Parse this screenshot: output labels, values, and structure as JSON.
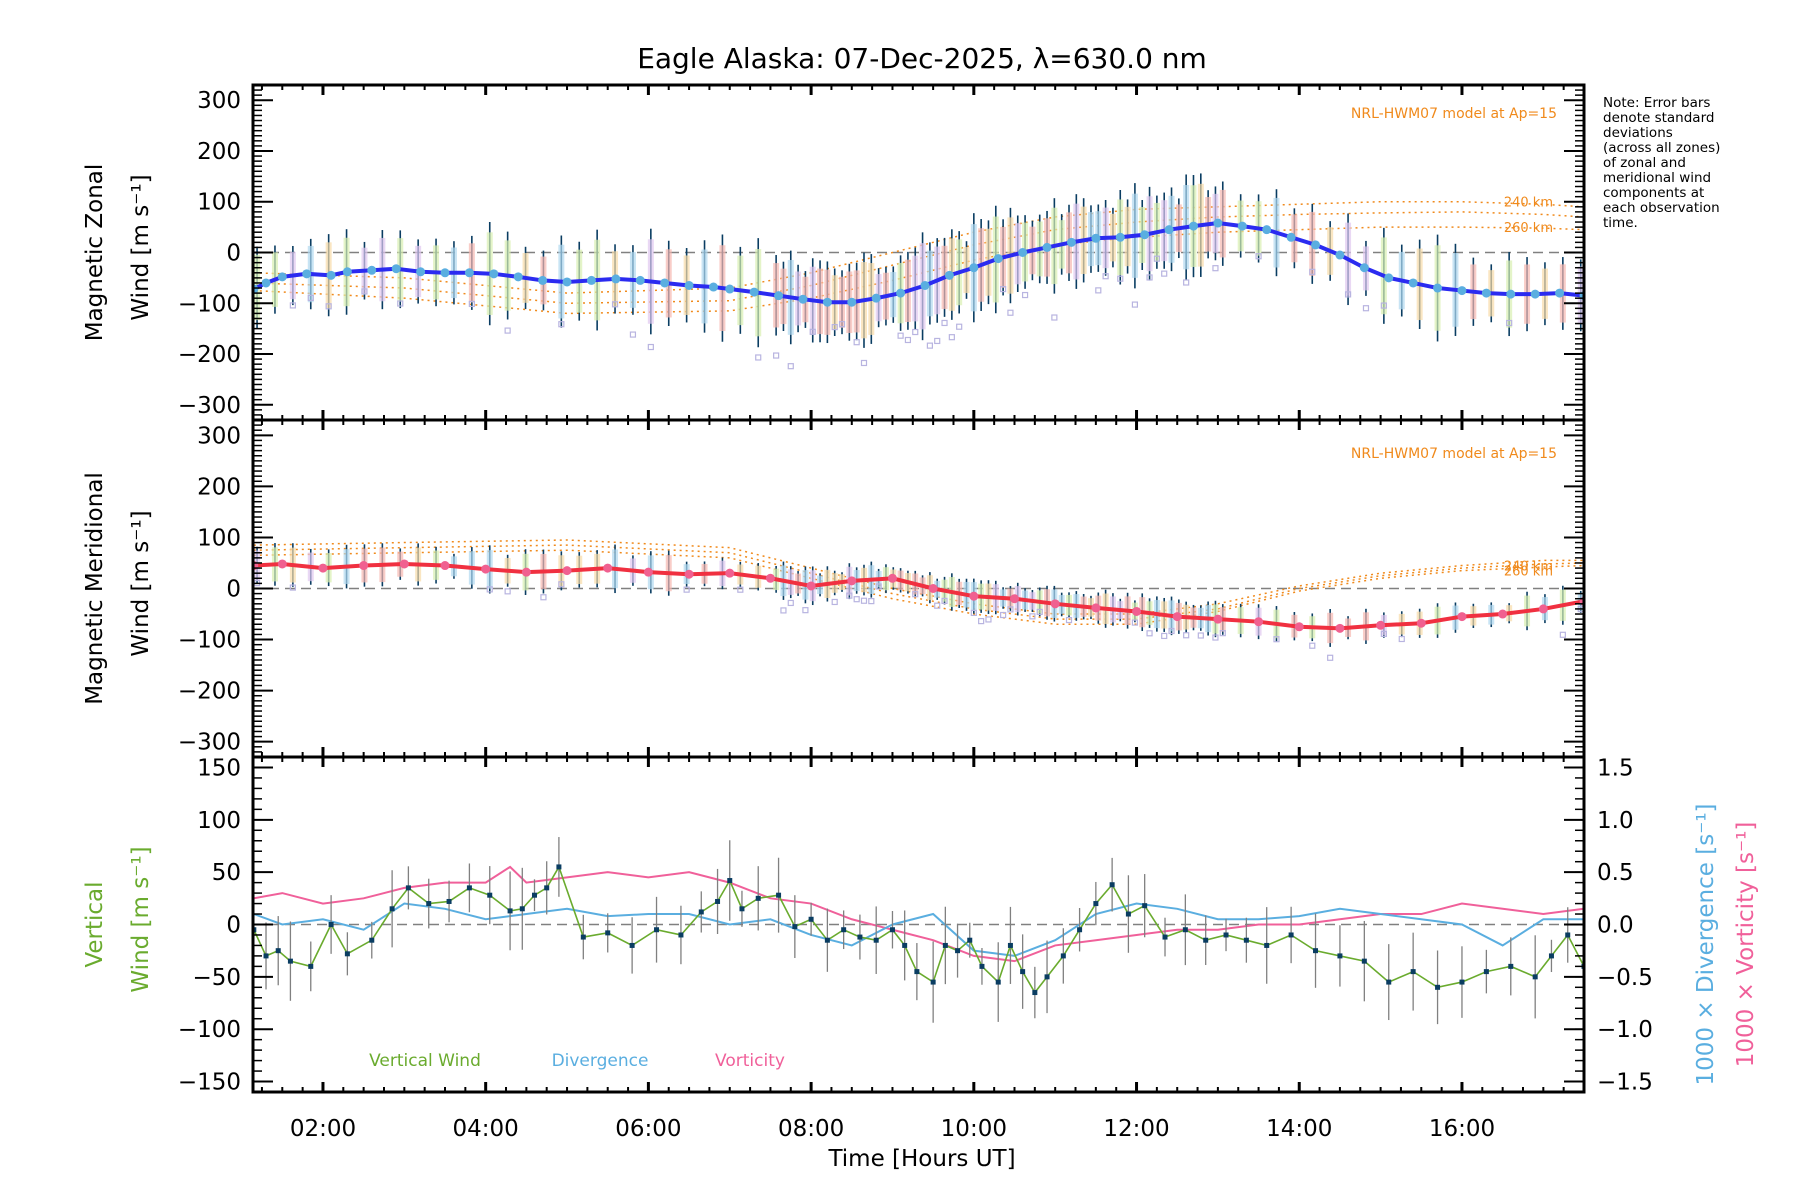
{
  "chart_data": [
    {
      "type": "line",
      "panel": "zonal",
      "title": "Eagle Alaska: 07-Dec-2025, λ=630.0 nm",
      "ylabel_line1": "Magnetic Zonal",
      "ylabel_line2": "Wind [m s⁻¹]",
      "ylim": [
        -330,
        330
      ],
      "yticks": [
        300,
        200,
        100,
        0,
        -100,
        -200,
        -300
      ],
      "model_label": "NRL-HWM07 model at Ap=15",
      "model_curve_labels": [
        "240 km",
        "260 km"
      ],
      "colors": {
        "line": "#2b2bf0",
        "points": "#5aaee0",
        "errorbar": "#0a3d62",
        "model": "#f08a1c",
        "scatter": "#b8b4e0"
      },
      "series": [
        {
          "name": "Zonal Wind",
          "x": [
            1.15,
            1.3,
            1.5,
            1.8,
            2.1,
            2.3,
            2.6,
            2.9,
            3.2,
            3.5,
            3.8,
            4.1,
            4.4,
            4.7,
            5.0,
            5.3,
            5.6,
            5.9,
            6.2,
            6.5,
            6.8,
            7.0,
            7.3,
            7.6,
            7.9,
            8.2,
            8.5,
            8.8,
            9.1,
            9.4,
            9.7,
            10.0,
            10.3,
            10.6,
            10.9,
            11.2,
            11.5,
            11.8,
            12.1,
            12.4,
            12.7,
            13.0,
            13.3,
            13.6,
            13.9,
            14.2,
            14.5,
            14.8,
            15.1,
            15.4,
            15.7,
            16.0,
            16.3,
            16.6,
            16.9,
            17.2,
            17.5
          ],
          "values": [
            -72,
            -60,
            -48,
            -42,
            -45,
            -38,
            -35,
            -32,
            -38,
            -40,
            -40,
            -42,
            -48,
            -55,
            -58,
            -55,
            -52,
            -55,
            -60,
            -65,
            -68,
            -72,
            -78,
            -85,
            -92,
            -98,
            -98,
            -90,
            -80,
            -65,
            -45,
            -30,
            -12,
            0,
            10,
            20,
            28,
            30,
            35,
            45,
            52,
            58,
            52,
            45,
            30,
            15,
            -5,
            -30,
            -50,
            -60,
            -70,
            -75,
            -80,
            -82,
            -82,
            -80,
            -85
          ]
        },
        {
          "name": "Model 240 km",
          "x": [
            1.15,
            3,
            5,
            7,
            8,
            9,
            10,
            11,
            12,
            13,
            14,
            15,
            16,
            17,
            17.5
          ],
          "values": [
            -40,
            -50,
            -80,
            -70,
            -40,
            0,
            40,
            70,
            85,
            90,
            95,
            100,
            100,
            95,
            90
          ]
        },
        {
          "name": "Model 250 km",
          "x": [
            1.15,
            3,
            5,
            7,
            8,
            9,
            10,
            11,
            12,
            13,
            14,
            15,
            16,
            17,
            17.5
          ],
          "values": [
            -60,
            -70,
            -100,
            -95,
            -65,
            -25,
            15,
            45,
            60,
            70,
            75,
            78,
            80,
            75,
            70
          ]
        },
        {
          "name": "Model 260 km",
          "x": [
            1.15,
            3,
            5,
            7,
            8,
            9,
            10,
            11,
            12,
            13,
            14,
            15,
            16,
            17,
            17.5
          ],
          "values": [
            -75,
            -90,
            -120,
            -115,
            -90,
            -55,
            -15,
            15,
            30,
            40,
            45,
            50,
            50,
            48,
            45
          ]
        }
      ],
      "error_std_typical": 90
    },
    {
      "type": "line",
      "panel": "meridional",
      "ylabel_line1": "Magnetic Meridional",
      "ylabel_line2": "Wind [m s⁻¹]",
      "ylim": [
        -330,
        330
      ],
      "yticks": [
        300,
        200,
        100,
        0,
        -100,
        -200,
        -300
      ],
      "model_label": "NRL-HWM07 model at Ap=15",
      "model_curve_labels": [
        "240 km",
        "260 km"
      ],
      "colors": {
        "line": "#f03040",
        "points": "#f06090",
        "errorbar": "#0a3d62",
        "model": "#f08a1c",
        "scatter": "#b8b4e0"
      },
      "series": [
        {
          "name": "Meridional Wind",
          "x": [
            1.15,
            1.5,
            2.0,
            2.5,
            3.0,
            3.5,
            4.0,
            4.5,
            5.0,
            5.5,
            6.0,
            6.5,
            7.0,
            7.5,
            8.0,
            8.5,
            9.0,
            9.5,
            10.0,
            10.5,
            11.0,
            11.5,
            12.0,
            12.5,
            13.0,
            13.5,
            14.0,
            14.5,
            15.0,
            15.5,
            16.0,
            16.5,
            17.0,
            17.5
          ],
          "values": [
            45,
            48,
            40,
            45,
            48,
            45,
            38,
            32,
            35,
            40,
            32,
            28,
            30,
            20,
            5,
            15,
            20,
            0,
            -15,
            -20,
            -30,
            -38,
            -45,
            -55,
            -60,
            -65,
            -75,
            -78,
            -72,
            -68,
            -55,
            -50,
            -40,
            -25
          ]
        },
        {
          "name": "Model 240 km",
          "x": [
            1.15,
            3,
            5,
            7,
            8,
            9,
            10,
            11,
            12,
            13,
            14,
            15,
            16,
            17,
            17.5
          ],
          "values": [
            85,
            90,
            95,
            80,
            40,
            0,
            -30,
            -50,
            -50,
            -30,
            5,
            30,
            45,
            55,
            55
          ]
        },
        {
          "name": "Model 250 km",
          "x": [
            1.15,
            3,
            5,
            7,
            8,
            9,
            10,
            11,
            12,
            13,
            14,
            15,
            16,
            17,
            17.5
          ],
          "values": [
            75,
            80,
            85,
            70,
            30,
            -10,
            -40,
            -60,
            -60,
            -40,
            0,
            25,
            40,
            48,
            50
          ]
        },
        {
          "name": "Model 260 km",
          "x": [
            1.15,
            3,
            5,
            7,
            8,
            9,
            10,
            11,
            12,
            13,
            14,
            15,
            16,
            17,
            17.5
          ],
          "values": [
            65,
            70,
            75,
            60,
            20,
            -20,
            -50,
            -70,
            -70,
            -45,
            -5,
            20,
            35,
            42,
            45
          ]
        }
      ],
      "error_std_typical": 40
    },
    {
      "type": "line",
      "panel": "vertical",
      "xlabel": "Time [Hours UT]",
      "xticks": [
        "02:00",
        "04:00",
        "06:00",
        "08:00",
        "10:00",
        "12:00",
        "14:00",
        "16:00"
      ],
      "xtick_values": [
        2,
        4,
        6,
        8,
        10,
        12,
        14,
        16
      ],
      "xlim": [
        1.14,
        17.5
      ],
      "ylabel_line1": "Vertical",
      "ylabel_line2": "Wind [m s⁻¹]",
      "ylim": [
        -160,
        160
      ],
      "yticks": [
        150,
        100,
        50,
        0,
        -50,
        -100,
        -150
      ],
      "y2label_div": "1000 × Divergence [s⁻¹]",
      "y2label_vort": "1000 × Vorticity [s⁻¹]",
      "y2lim": [
        -1.6,
        1.6
      ],
      "y2ticks": [
        "1.5",
        "1.0",
        "0.5",
        "0.0",
        "-0.5",
        "-1.0",
        "-1.5"
      ],
      "y2tick_values": [
        1.5,
        1.0,
        0.5,
        0.0,
        -0.5,
        -1.0,
        -1.5
      ],
      "legend": [
        "Vertical Wind",
        "Divergence",
        "Vorticity"
      ],
      "legend_placement": "bottom-left",
      "colors": {
        "vertical": "#6aab2e",
        "divergence": "#5aaee0",
        "vorticity": "#f0609a",
        "points": "#0a3d62",
        "errorbar": "#808080"
      },
      "series": [
        {
          "name": "Vertical Wind",
          "x": [
            1.15,
            1.3,
            1.45,
            1.6,
            1.85,
            2.1,
            2.3,
            2.6,
            2.85,
            3.05,
            3.3,
            3.55,
            3.8,
            4.05,
            4.3,
            4.45,
            4.6,
            4.75,
            4.9,
            5.2,
            5.5,
            5.8,
            6.1,
            6.4,
            6.65,
            6.85,
            7.0,
            7.15,
            7.35,
            7.6,
            7.8,
            8.0,
            8.2,
            8.4,
            8.6,
            8.8,
            9.0,
            9.15,
            9.3,
            9.5,
            9.65,
            9.8,
            9.95,
            10.1,
            10.3,
            10.45,
            10.6,
            10.75,
            10.9,
            11.1,
            11.3,
            11.5,
            11.7,
            11.9,
            12.1,
            12.35,
            12.6,
            12.85,
            13.1,
            13.35,
            13.6,
            13.9,
            14.2,
            14.5,
            14.8,
            15.1,
            15.4,
            15.7,
            16.0,
            16.3,
            16.6,
            16.9,
            17.1,
            17.3,
            17.5
          ],
          "values": [
            -5,
            -30,
            -25,
            -35,
            -40,
            0,
            -28,
            -15,
            15,
            35,
            20,
            22,
            35,
            28,
            13,
            15,
            28,
            35,
            55,
            -12,
            -8,
            -20,
            -5,
            -10,
            12,
            22,
            42,
            15,
            25,
            28,
            -2,
            5,
            -15,
            -5,
            -12,
            -15,
            -5,
            -20,
            -45,
            -55,
            -20,
            -25,
            -15,
            -40,
            -55,
            -20,
            -45,
            -65,
            -50,
            -30,
            -5,
            20,
            38,
            10,
            18,
            -12,
            -5,
            -15,
            -10,
            -15,
            -20,
            -10,
            -25,
            -30,
            -35,
            -55,
            -45,
            -60,
            -55,
            -45,
            -40,
            -50,
            -30,
            -10,
            -40
          ]
        },
        {
          "name": "Divergence (x1000)",
          "x": [
            1.15,
            1.5,
            2.0,
            2.5,
            3.0,
            3.5,
            4.0,
            4.5,
            5.0,
            5.5,
            6.0,
            6.5,
            7.0,
            7.5,
            8.0,
            8.5,
            9.0,
            9.5,
            10.0,
            10.5,
            11.0,
            11.5,
            12.0,
            12.5,
            13.0,
            13.5,
            14.0,
            14.5,
            15.0,
            15.5,
            16.0,
            16.5,
            17.0,
            17.5
          ],
          "values": [
            0.1,
            0.0,
            0.05,
            -0.05,
            0.2,
            0.15,
            0.05,
            0.1,
            0.15,
            0.08,
            0.1,
            0.1,
            0.0,
            0.05,
            -0.1,
            -0.2,
            0.0,
            0.1,
            -0.25,
            -0.3,
            -0.15,
            0.1,
            0.2,
            0.15,
            0.05,
            0.05,
            0.08,
            0.15,
            0.1,
            0.05,
            0.0,
            -0.2,
            0.05,
            0.05
          ]
        },
        {
          "name": "Vorticity (x1000)",
          "x": [
            1.15,
            1.5,
            2.0,
            2.5,
            3.0,
            3.5,
            4.0,
            4.3,
            4.5,
            5.0,
            5.5,
            6.0,
            6.5,
            7.0,
            7.5,
            8.0,
            8.5,
            9.0,
            9.5,
            10.0,
            10.5,
            11.0,
            11.5,
            12.0,
            12.5,
            13.0,
            13.5,
            14.0,
            14.5,
            15.0,
            15.5,
            16.0,
            16.5,
            17.0,
            17.5
          ],
          "values": [
            0.25,
            0.3,
            0.2,
            0.25,
            0.35,
            0.4,
            0.4,
            0.55,
            0.4,
            0.45,
            0.5,
            0.45,
            0.5,
            0.4,
            0.25,
            0.2,
            0.05,
            -0.05,
            -0.15,
            -0.3,
            -0.35,
            -0.2,
            -0.15,
            -0.1,
            -0.05,
            -0.05,
            0.0,
            0.0,
            0.05,
            0.1,
            0.1,
            0.2,
            0.15,
            0.1,
            0.15
          ]
        }
      ]
    }
  ],
  "note": "Note: Error bars\ndenote standard\ndeviations\n(across all zones)\nof zonal and\nmeridional wind\ncomponents at\neach observation\ntime."
}
